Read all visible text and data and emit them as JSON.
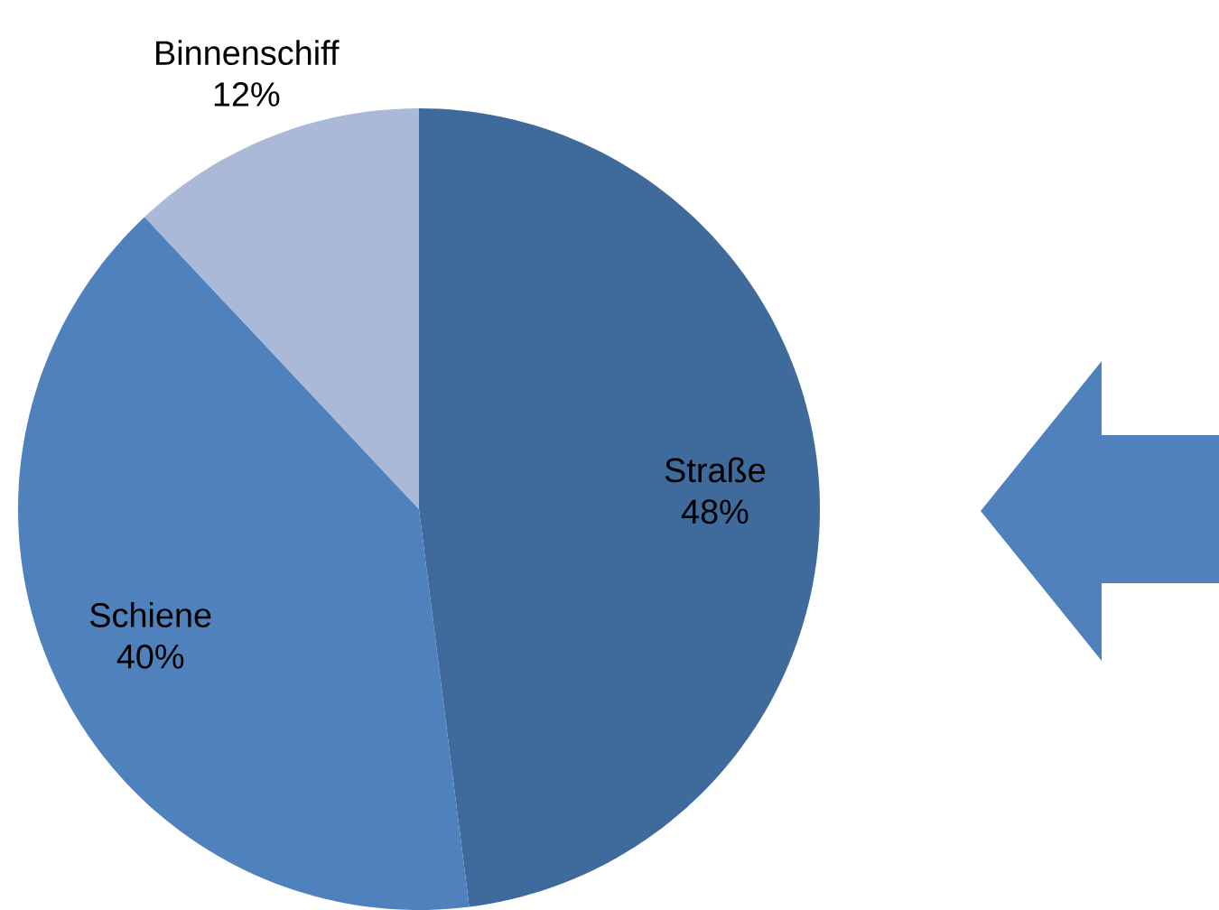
{
  "chart_data": {
    "type": "pie",
    "categories": [
      "Straße",
      "Schiene",
      "Binnenschiff"
    ],
    "values": [
      48,
      40,
      12
    ],
    "colors": [
      "#3f6a9c",
      "#4f81bd",
      "#aab9d8"
    ],
    "value_labels": [
      "48%",
      "40%",
      "12%"
    ]
  }
}
